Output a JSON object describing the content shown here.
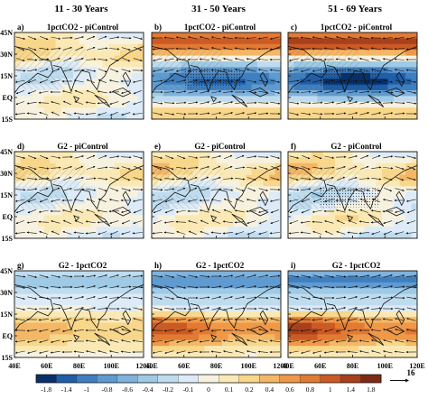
{
  "chart_data": {
    "type": "heatmap",
    "columns": [
      "11 - 30 Years",
      "31 - 50 Years",
      "51 - 69 Years"
    ],
    "lat_ticks": [
      "45N",
      "30N",
      "15N",
      "EQ",
      "15S"
    ],
    "lon_ticks": [
      "40E",
      "60E",
      "80E",
      "100E",
      "120E"
    ],
    "colorbar": {
      "labels": [
        "-1.8",
        "-1.4",
        "-1",
        "-0.8",
        "-0.6",
        "-0.4",
        "-0.2",
        "-0.1",
        "0",
        "0.1",
        "0.2",
        "0.4",
        "0.6",
        "0.8",
        "1",
        "1.4",
        "1.8"
      ],
      "colors": [
        "#08306b",
        "#1f5fa8",
        "#3f7fc0",
        "#5f9ad0",
        "#7fb2dc",
        "#9ecae6",
        "#bfdcef",
        "#dcebf7",
        "#f7f2e0",
        "#fbe9b5",
        "#f8d68a",
        "#f4b766",
        "#ef9848",
        "#e27a34",
        "#cc5a24",
        "#a8401c",
        "#7f2a14"
      ],
      "reference_vector": "16"
    },
    "panels": [
      {
        "letter": "a)",
        "title": "1pctCO2 - piControl",
        "pattern": "weak_mixed",
        "strength": 0.45,
        "stipple": "hatch"
      },
      {
        "letter": "b)",
        "title": "1pctCO2 - piControl",
        "pattern": "cool_south_warm_north",
        "strength": 0.85,
        "stipple": "hatch_dots"
      },
      {
        "letter": "c)",
        "title": "1pctCO2 - piControl",
        "pattern": "cool_south_warm_north",
        "strength": 1.0,
        "stipple": "hatch_dots"
      },
      {
        "letter": "d)",
        "title": "G2 - piControl",
        "pattern": "weak_mixed",
        "strength": 0.4,
        "stipple": "hatch"
      },
      {
        "letter": "e)",
        "title": "G2 - piControl",
        "pattern": "weak_mixed",
        "strength": 0.5,
        "stipple": "hatch"
      },
      {
        "letter": "f)",
        "title": "G2 - piControl",
        "pattern": "weak_mixed",
        "strength": 0.55,
        "stipple": "hatch_dots"
      },
      {
        "letter": "g)",
        "title": "G2 - 1pctCO2",
        "pattern": "warm_south_cool_north",
        "strength": 0.45,
        "stipple": "none"
      },
      {
        "letter": "h)",
        "title": "G2 - 1pctCO2",
        "pattern": "warm_south_cool_north",
        "strength": 0.85,
        "stipple": "none"
      },
      {
        "letter": "i)",
        "title": "G2 - 1pctCO2",
        "pattern": "warm_south_cool_north",
        "strength": 0.95,
        "stipple": "none"
      }
    ]
  }
}
